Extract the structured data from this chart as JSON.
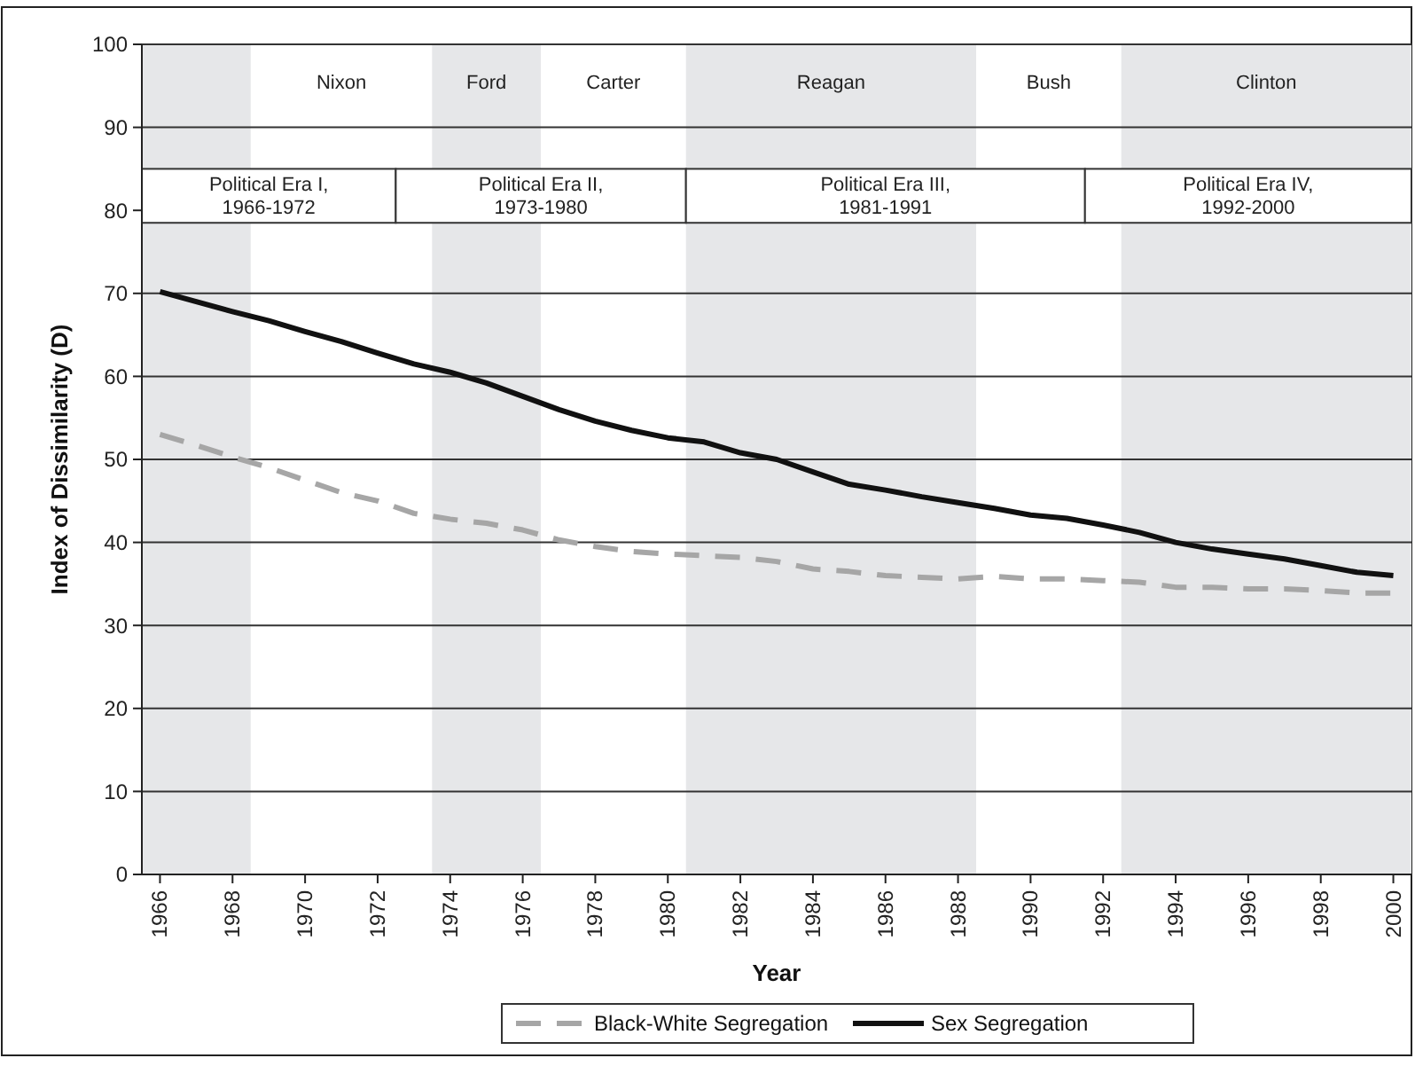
{
  "chart_data": {
    "type": "line",
    "xlabel": "Year",
    "ylabel": "Index of Dissimilarity (D)",
    "x": [
      1966,
      1967,
      1968,
      1969,
      1970,
      1971,
      1972,
      1973,
      1974,
      1975,
      1976,
      1977,
      1978,
      1979,
      1980,
      1981,
      1982,
      1983,
      1984,
      1985,
      1986,
      1987,
      1988,
      1989,
      1990,
      1991,
      1992,
      1993,
      1994,
      1995,
      1996,
      1997,
      1998,
      1999,
      2000
    ],
    "series": [
      {
        "name": "Black-White Segregation",
        "color": "#a6a6a6",
        "line_style": "dashed",
        "values": [
          53,
          51.7,
          50.3,
          49,
          47.5,
          46,
          45,
          43.5,
          42.8,
          42.3,
          41.5,
          40.3,
          39.5,
          38.9,
          38.6,
          38.4,
          38.2,
          37.7,
          36.8,
          36.5,
          36,
          35.8,
          35.6,
          35.9,
          35.6,
          35.6,
          35.4,
          35.2,
          34.6,
          34.6,
          34.4,
          34.4,
          34.2,
          33.9,
          33.9
        ]
      },
      {
        "name": "Sex Segregation",
        "color": "#111111",
        "line_style": "solid",
        "values": [
          70.2,
          69,
          67.8,
          66.7,
          65.4,
          64.2,
          62.8,
          61.5,
          60.5,
          59.2,
          57.6,
          56,
          54.6,
          53.5,
          52.6,
          52.1,
          50.8,
          50,
          48.5,
          47,
          46.3,
          45.5,
          44.8,
          44.1,
          43.3,
          42.9,
          42.1,
          41.2,
          40,
          39.2,
          38.6,
          38,
          37.2,
          36.4,
          36
        ]
      }
    ],
    "xlim": [
      1965.5,
      2000.5
    ],
    "xticks": [
      1966,
      1968,
      1970,
      1972,
      1974,
      1976,
      1978,
      1980,
      1982,
      1984,
      1986,
      1988,
      1990,
      1992,
      1994,
      1996,
      1998,
      2000
    ],
    "ylim": [
      0,
      100
    ],
    "yticks": [
      0,
      10,
      20,
      30,
      40,
      50,
      60,
      70,
      80,
      90,
      100
    ],
    "grid": "y",
    "legend": "bottom",
    "marker": "none",
    "bands": [
      {
        "axis": "x",
        "from": 1965.5,
        "to": 1968.5,
        "color": "#e6e7e9"
      },
      {
        "axis": "x",
        "from": 1973.5,
        "to": 1976.5,
        "label": "Ford",
        "color": "#e6e7e9"
      },
      {
        "axis": "x",
        "from": 1980.5,
        "to": 1988.5,
        "label": "Reagan",
        "color": "#e6e7e9"
      },
      {
        "axis": "x",
        "from": 1992.5,
        "to": 2000.5,
        "label": "Clinton",
        "color": "#e6e7e9"
      },
      {
        "axis": "x",
        "from": 1965.5,
        "to": 1972.5,
        "label": "Political Era I,\n1966-1972",
        "color": "#ffffff"
      },
      {
        "axis": "x",
        "from": 1972.5,
        "to": 1980.5,
        "label": "Political Era II,\n1973-1980",
        "color": "#ffffff"
      },
      {
        "axis": "x",
        "from": 1980.5,
        "to": 1991.5,
        "label": "Political Era III,\n1981-1991",
        "color": "#ffffff"
      },
      {
        "axis": "x",
        "from": 1991.5,
        "to": 2000.5,
        "label": "Political Era IV,\n1992-2000",
        "color": "#ffffff"
      }
    ],
    "annotations": [
      "Nixon",
      "Carter",
      "Bush"
    ]
  }
}
